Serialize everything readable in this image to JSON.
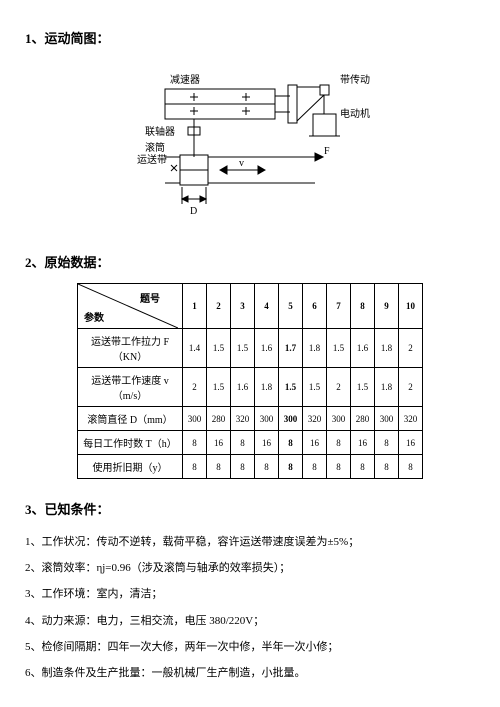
{
  "section1": {
    "heading": "1、运动简图：",
    "labels": {
      "reducer": "减速器",
      "belt_drive": "带传动",
      "motor": "电动机",
      "coupling": "联轴器",
      "drum": "滚筒",
      "conveyor": "运送带",
      "force_F": "F",
      "velocity_v": "v",
      "diameter_D": "D"
    }
  },
  "section2": {
    "heading": "2、原始数据：",
    "diag_label_top": "题号",
    "diag_label_bottom": "参数",
    "col_headers": [
      "1",
      "2",
      "3",
      "4",
      "5",
      "6",
      "7",
      "8",
      "9",
      "10"
    ],
    "highlight_col_index": 4,
    "rows": [
      {
        "label": "运送带工作拉力 F（KN）",
        "vals": [
          "1.4",
          "1.5",
          "1.5",
          "1.6",
          "1.7",
          "1.8",
          "1.5",
          "1.6",
          "1.8",
          "2"
        ]
      },
      {
        "label": "运送带工作速度 v（m/s）",
        "vals": [
          "2",
          "1.5",
          "1.6",
          "1.8",
          "1.5",
          "1.5",
          "2",
          "1.5",
          "1.8",
          "2"
        ]
      },
      {
        "label": "滚筒直径 D（mm）",
        "vals": [
          "300",
          "280",
          "320",
          "300",
          "300",
          "320",
          "300",
          "280",
          "300",
          "320"
        ]
      },
      {
        "label": "每日工作时数 T（h）",
        "vals": [
          "8",
          "16",
          "8",
          "16",
          "8",
          "16",
          "8",
          "16",
          "8",
          "16"
        ]
      },
      {
        "label": "使用折旧期（y）",
        "vals": [
          "8",
          "8",
          "8",
          "8",
          "8",
          "8",
          "8",
          "8",
          "8",
          "8"
        ]
      }
    ]
  },
  "section3": {
    "heading": "3、已知条件：",
    "items": [
      "1、工作状况：传动不逆转，载荷平稳，容许运送带速度误差为±5%；",
      "2、滚筒效率：ηj=0.96（涉及滚筒与轴承的效率损失）；",
      "3、工作环境：室内，清洁；",
      "4、动力来源：电力，三相交流，电压 380/220V；",
      "5、检修间隔期：四年一次大修，两年一次中修，半年一次小修；",
      "6、制造条件及生产批量：一般机械厂生产制造，小批量。"
    ]
  },
  "style": {
    "stroke": "#000000",
    "text_color": "#000000",
    "background": "#ffffff"
  }
}
